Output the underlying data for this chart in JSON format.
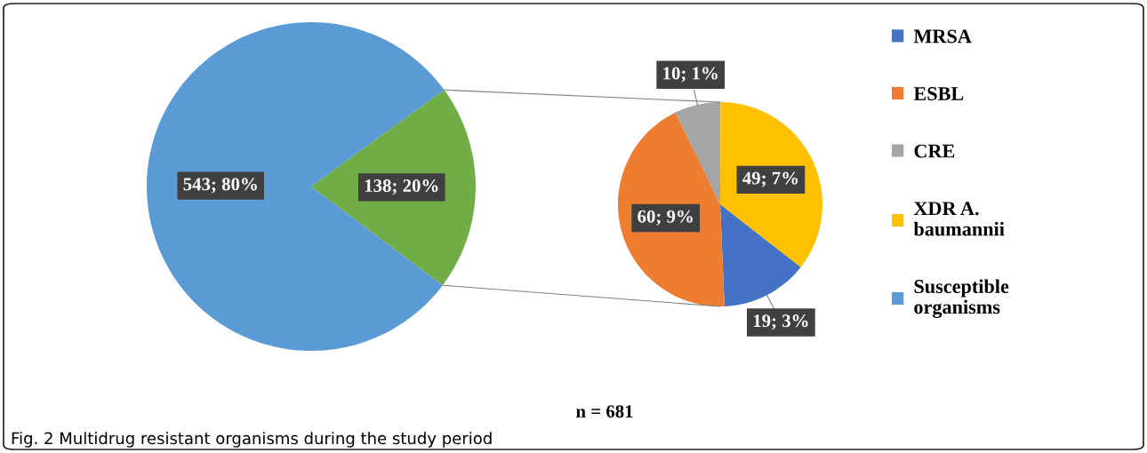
{
  "chart_data": [
    {
      "type": "pie",
      "categories": [
        "Susceptible organisms",
        null
      ],
      "values": [
        543,
        138
      ],
      "colors": [
        "#5b9bd5",
        "#70ad47"
      ],
      "value_labels": [
        "543; 80%",
        "138; 20%"
      ],
      "legend": "right"
    },
    {
      "type": "pie",
      "categories": [
        "MRSA",
        "ESBL",
        "CRE",
        "XDR A. baumannii"
      ],
      "values": [
        19,
        60,
        10,
        49
      ],
      "colors": [
        "#4472c4",
        "#ed7d31",
        "#a5a5a5",
        "#ffc000"
      ],
      "value_labels": [
        "19; 3%",
        "60; 9%",
        "10; 1%",
        "49; 7%"
      ],
      "legend": "right",
      "annotations": [
        "n = 681",
        "Fig. 2 Multidrug resistant organisms during the study period"
      ]
    }
  ]
}
